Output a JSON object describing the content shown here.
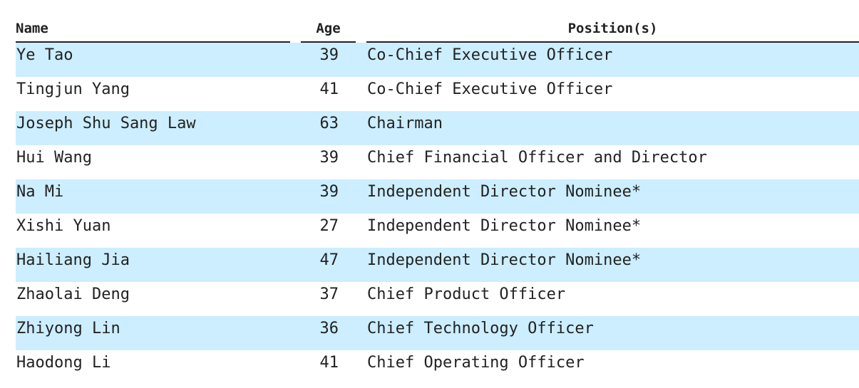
{
  "table": {
    "headers": {
      "name": "Name",
      "age": "Age",
      "position": "Position(s)"
    },
    "rows": [
      {
        "name": "Ye Tao",
        "age": "39",
        "position": "Co-Chief Executive Officer"
      },
      {
        "name": "Tingjun Yang",
        "age": "41",
        "position": "Co-Chief Executive Officer"
      },
      {
        "name": "Joseph Shu Sang Law",
        "age": "63",
        "position": "Chairman"
      },
      {
        "name": "Hui Wang",
        "age": "39",
        "position": "Chief Financial Officer and Director"
      },
      {
        "name": "Na Mi",
        "age": "39",
        "position": "Independent Director Nominee*"
      },
      {
        "name": "Xishi Yuan",
        "age": "27",
        "position": "Independent Director Nominee*"
      },
      {
        "name": "Hailiang Jia",
        "age": "47",
        "position": "Independent Director Nominee*"
      },
      {
        "name": "Zhaolai Deng",
        "age": "37",
        "position": "Chief Product Officer"
      },
      {
        "name": "Zhiyong Lin",
        "age": "36",
        "position": "Chief Technology Officer"
      },
      {
        "name": "Haodong Li",
        "age": "41",
        "position": "Chief Operating Officer"
      }
    ],
    "colors": {
      "row_shade": "#cceeff",
      "text": "#222222"
    }
  }
}
